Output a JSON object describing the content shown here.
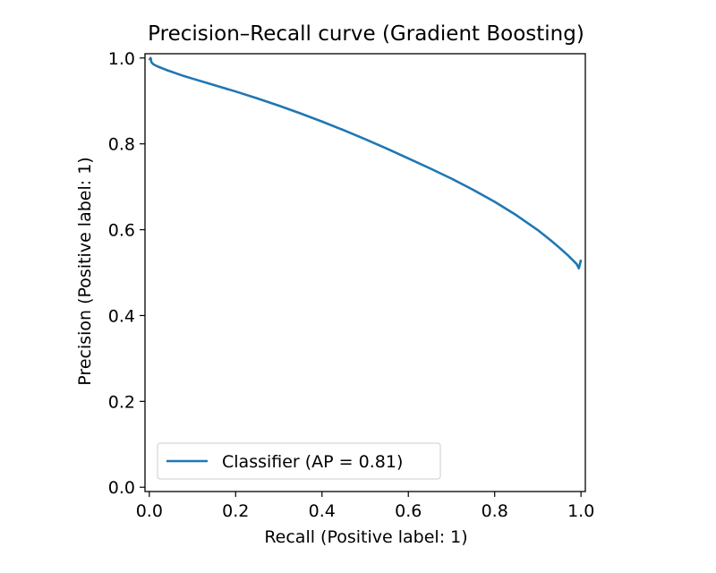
{
  "chart_data": {
    "type": "line",
    "title": "Precision–Recall curve (Gradient Boosting)",
    "xlabel": "Recall (Positive label: 1)",
    "ylabel": "Precision (Positive label: 1)",
    "xlim": [
      -0.01,
      1.01
    ],
    "ylim": [
      -0.01,
      1.01
    ],
    "xticks": [
      "0.0",
      "0.2",
      "0.4",
      "0.6",
      "0.8",
      "1.0"
    ],
    "yticks": [
      "0.0",
      "0.2",
      "0.4",
      "0.6",
      "0.8",
      "1.0"
    ],
    "grid": false,
    "legend_position": "lower-left",
    "series": [
      {
        "name": "Classifier (AP = 0.81)",
        "color": "#1f77b4",
        "x": [
          0.0,
          0.003,
          0.005,
          0.01,
          0.02,
          0.04,
          0.06,
          0.08,
          0.1,
          0.15,
          0.2,
          0.25,
          0.3,
          0.35,
          0.4,
          0.45,
          0.5,
          0.55,
          0.6,
          0.65,
          0.7,
          0.75,
          0.8,
          0.85,
          0.9,
          0.93,
          0.95,
          0.97,
          0.98,
          0.99,
          0.995,
          1.0
        ],
        "y": [
          0.995,
          1.0,
          0.99,
          0.985,
          0.98,
          0.972,
          0.965,
          0.958,
          0.952,
          0.937,
          0.922,
          0.906,
          0.889,
          0.871,
          0.852,
          0.832,
          0.811,
          0.789,
          0.766,
          0.743,
          0.719,
          0.693,
          0.665,
          0.634,
          0.599,
          0.575,
          0.558,
          0.54,
          0.53,
          0.52,
          0.51,
          0.53
        ]
      }
    ]
  }
}
